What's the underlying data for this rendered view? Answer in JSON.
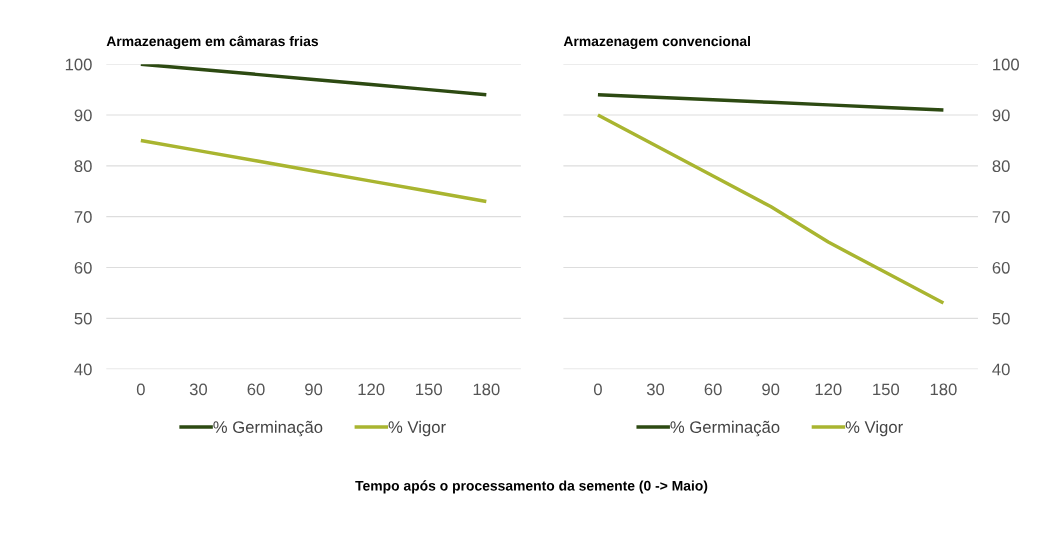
{
  "chart_data": [
    {
      "type": "line",
      "title": "Armazenagem em câmaras frias",
      "categories": [
        "0",
        "30",
        "60",
        "90",
        "120",
        "150",
        "180"
      ],
      "series": [
        {
          "name": "% Germinação",
          "color": "#2d4a12",
          "values": [
            100,
            99,
            98,
            97,
            96,
            95,
            94
          ]
        },
        {
          "name": "% Vigor",
          "color": "#a9b530",
          "values": [
            85,
            83,
            81,
            79,
            77,
            75,
            73
          ]
        }
      ],
      "ylim": [
        40,
        100
      ],
      "yticks": [
        40,
        50,
        60,
        70,
        80,
        90,
        100
      ],
      "grid": "y",
      "legend": "bottom",
      "annotations": [
        "Tempo após o processamento da semente (0 -> Maio)"
      ]
    },
    {
      "type": "line",
      "title": "Armazenagem convencional",
      "categories": [
        "0",
        "30",
        "60",
        "90",
        "120",
        "150",
        "180"
      ],
      "series": [
        {
          "name": "% Germinação",
          "color": "#2d4a12",
          "values": [
            94,
            93.5,
            93,
            92.5,
            92,
            91.5,
            91
          ]
        },
        {
          "name": "% Vigor",
          "color": "#a9b530",
          "values": [
            90,
            84,
            78,
            72,
            65,
            59,
            53
          ]
        }
      ],
      "ylim": [
        40,
        100
      ],
      "yticks": [
        40,
        50,
        60,
        70,
        80,
        90,
        100
      ],
      "grid": "y",
      "legend": "bottom"
    }
  ]
}
